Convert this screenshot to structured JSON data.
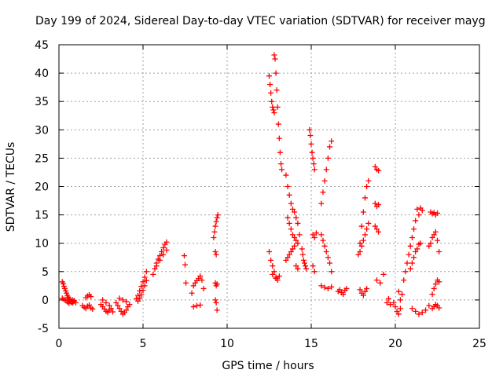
{
  "chart_data": {
    "type": "scatter",
    "title": "Day 199 of 2024, Sidereal Day-to-day VTEC variation (SDTVAR) for receiver mayg",
    "xlabel": "GPS time / hours",
    "ylabel": "SDTVAR / TECUs",
    "xlim": [
      0,
      25
    ],
    "ylim": [
      -5,
      45
    ],
    "xticks": [
      0,
      5,
      10,
      15,
      20,
      25
    ],
    "yticks": [
      -5,
      0,
      5,
      10,
      15,
      20,
      25,
      30,
      35,
      40,
      45
    ],
    "grid": true,
    "marker": "+",
    "color": "#ff0000",
    "series": [
      {
        "name": "SDTVAR",
        "x": [
          0.2,
          0.25,
          0.3,
          0.35,
          0.4,
          0.45,
          0.5,
          0.55,
          0.6,
          0.65,
          0.7,
          0.75,
          0.8,
          0.85,
          0.9,
          0.2,
          0.3,
          0.4,
          0.5,
          0.6,
          0.7,
          0.8,
          0.9,
          1.0,
          1.4,
          1.5,
          1.6,
          1.7,
          1.8,
          1.9,
          2.0,
          1.6,
          1.7,
          1.8,
          1.9,
          2.5,
          2.6,
          2.7,
          2.8,
          2.9,
          3.0,
          3.1,
          3.2,
          2.6,
          2.8,
          3.0,
          3.4,
          3.5,
          3.6,
          3.7,
          3.8,
          3.9,
          4.0,
          4.1,
          4.2,
          3.6,
          3.8,
          4.0,
          4.6,
          4.7,
          4.8,
          4.9,
          5.0,
          5.1,
          5.2,
          4.7,
          4.8,
          4.9,
          5.0,
          5.1,
          5.2,
          5.6,
          5.7,
          5.8,
          5.9,
          6.0,
          6.1,
          6.2,
          6.3,
          6.4,
          5.8,
          6.0,
          6.2,
          6.4,
          7.45,
          7.5,
          7.55,
          7.9,
          8.0,
          8.1,
          8.2,
          8.3,
          8.4,
          8.5,
          8.6,
          8.0,
          8.2,
          8.4,
          9.2,
          9.25,
          9.3,
          9.35,
          9.4,
          9.45,
          9.3,
          9.35,
          9.3,
          9.35,
          9.4,
          9.3,
          9.35,
          9.4,
          12.5,
          12.55,
          12.6,
          12.65,
          12.7,
          12.75,
          12.8,
          12.8,
          12.85,
          12.9,
          12.95,
          13.0,
          13.05,
          13.1,
          13.15,
          13.2,
          13.25,
          12.5,
          12.6,
          12.7,
          12.8,
          12.9,
          13.0,
          12.7,
          12.9,
          13.1,
          13.5,
          13.6,
          13.7,
          13.8,
          13.9,
          14.0,
          14.1,
          14.2,
          13.6,
          13.7,
          13.8,
          13.9,
          14.0,
          14.1,
          14.2,
          14.3,
          13.5,
          13.6,
          13.7,
          13.8,
          13.9,
          14.0,
          14.1,
          14.2,
          14.45,
          14.5,
          14.55,
          14.6,
          14.65,
          14.7,
          14.9,
          14.95,
          15.0,
          15.05,
          15.1,
          15.15,
          15.2,
          15.1,
          15.2,
          15.3,
          15.1,
          15.2,
          15.6,
          15.7,
          15.8,
          15.9,
          16.0,
          16.1,
          16.2,
          15.6,
          15.7,
          15.8,
          15.9,
          16.0,
          16.1,
          16.2,
          15.6,
          15.8,
          16.0,
          16.2,
          16.6,
          16.7,
          16.8,
          16.9,
          17.0,
          17.1,
          17.8,
          17.9,
          18.0,
          18.1,
          18.2,
          18.3,
          18.4,
          17.9,
          18.0,
          18.1,
          18.2,
          18.3,
          18.4,
          17.9,
          18.0,
          18.1,
          18.2,
          18.3,
          18.8,
          18.9,
          19.0,
          18.8,
          18.9,
          19.0,
          18.8,
          18.9,
          19.0,
          18.9,
          19.1,
          19.3,
          19.5,
          19.6,
          19.7,
          19.9,
          20.0,
          20.1,
          20.2,
          20.3,
          20.4,
          20.2,
          20.3,
          20.5,
          20.6,
          20.7,
          20.8,
          20.9,
          21.0,
          21.1,
          21.2,
          20.9,
          21.0,
          21.1,
          21.2,
          21.3,
          21.4,
          21.5,
          21.3,
          21.4,
          21.5,
          21.6,
          21.0,
          21.2,
          21.4,
          21.6,
          21.8,
          22.0,
          22.0,
          22.1,
          22.2,
          22.3,
          22.4,
          22.5,
          22.6,
          22.1,
          22.2,
          22.3,
          22.4,
          22.5,
          22.2,
          22.3,
          22.4,
          22.5,
          22.6,
          22.2,
          22.3,
          22.4,
          22.5,
          22.6
        ],
        "y": [
          3.2,
          2.9,
          2.4,
          2.0,
          1.6,
          1.2,
          0.8,
          0.5,
          0.2,
          0.0,
          -0.2,
          -0.4,
          -0.5,
          -0.3,
          -0.1,
          0.3,
          0.1,
          -0.1,
          -0.4,
          -0.6,
          -0.3,
          0.0,
          -0.2,
          -0.5,
          -1.0,
          -1.3,
          -1.5,
          -1.1,
          -0.9,
          -1.4,
          -1.6,
          0.4,
          0.7,
          0.9,
          0.6,
          -0.8,
          -1.2,
          -1.6,
          -2.0,
          -2.2,
          -1.8,
          -1.5,
          -2.1,
          0.0,
          -0.5,
          -1.0,
          -0.5,
          -1.0,
          -1.5,
          -2.0,
          -2.5,
          -2.2,
          -1.8,
          -1.2,
          -0.8,
          0.3,
          0.0,
          -0.3,
          0.2,
          0.8,
          1.6,
          2.4,
          3.2,
          4.0,
          5.0,
          -0.2,
          0.3,
          0.9,
          1.7,
          2.5,
          3.4,
          4.5,
          5.5,
          6.5,
          7.2,
          7.8,
          8.5,
          9.2,
          9.8,
          10.2,
          6.0,
          7.0,
          8.0,
          8.8,
          7.8,
          6.2,
          3.0,
          1.2,
          2.5,
          3.0,
          3.4,
          3.8,
          4.2,
          3.5,
          2.0,
          -1.2,
          -1.0,
          -0.9,
          11.0,
          12.0,
          13.0,
          13.8,
          14.5,
          15.0,
          8.5,
          8.0,
          3.0,
          2.5,
          2.8,
          0.0,
          -0.5,
          -1.8,
          39.5,
          38.0,
          36.5,
          35.0,
          34.0,
          33.5,
          33.0,
          43.2,
          42.5,
          40.0,
          37.0,
          34.0,
          31.0,
          28.5,
          26.0,
          24.0,
          23.0,
          8.5,
          7.0,
          6.0,
          5.0,
          4.0,
          3.5,
          4.5,
          3.8,
          4.2,
          22.0,
          20.0,
          18.5,
          17.0,
          16.0,
          15.5,
          14.5,
          13.5,
          14.5,
          13.5,
          12.5,
          11.5,
          11.0,
          10.5,
          10.0,
          11.5,
          7.0,
          7.5,
          8.0,
          8.5,
          9.0,
          9.5,
          6.0,
          5.5,
          9.0,
          8.0,
          7.0,
          6.5,
          6.0,
          5.5,
          30.0,
          29.0,
          27.5,
          26.0,
          25.0,
          24.0,
          23.0,
          11.5,
          11.0,
          11.8,
          6.0,
          5.0,
          17.0,
          19.0,
          21.0,
          23.0,
          25.0,
          27.0,
          28.0,
          11.5,
          10.5,
          9.5,
          8.5,
          7.5,
          6.5,
          5.0,
          2.5,
          2.2,
          2.0,
          2.3,
          1.5,
          1.8,
          1.3,
          1.0,
          1.7,
          2.0,
          8.0,
          10.0,
          13.0,
          15.5,
          18.0,
          20.0,
          21.0,
          8.5,
          9.5,
          10.5,
          11.5,
          12.5,
          13.5,
          1.8,
          1.2,
          0.8,
          1.5,
          2.0,
          23.5,
          23.0,
          22.8,
          17.0,
          16.5,
          16.8,
          13.0,
          12.5,
          12.0,
          3.5,
          3.0,
          4.5,
          -0.5,
          0.2,
          -0.8,
          -0.5,
          -1.2,
          -2.0,
          -2.5,
          0.0,
          1.0,
          1.5,
          -1.5,
          3.5,
          5.0,
          6.5,
          8.0,
          9.5,
          11.0,
          12.5,
          14.0,
          5.5,
          6.5,
          7.5,
          8.5,
          9.0,
          9.8,
          10.0,
          16.0,
          15.0,
          16.2,
          15.8,
          -1.5,
          -2.0,
          -2.5,
          -2.2,
          -1.8,
          -1.0,
          9.5,
          10.0,
          11.0,
          11.5,
          12.0,
          10.5,
          8.5,
          15.5,
          15.2,
          15.4,
          15.0,
          15.3,
          1.0,
          2.0,
          2.8,
          3.5,
          3.2,
          -1.5,
          -1.2,
          -0.8,
          -1.0,
          -1.4
        ]
      }
    ]
  }
}
